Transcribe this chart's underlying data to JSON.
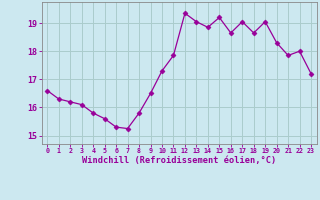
{
  "x": [
    0,
    1,
    2,
    3,
    4,
    5,
    6,
    7,
    8,
    9,
    10,
    11,
    12,
    13,
    14,
    15,
    16,
    17,
    18,
    19,
    20,
    21,
    22,
    23
  ],
  "y": [
    16.6,
    16.3,
    16.2,
    16.1,
    15.8,
    15.6,
    15.3,
    15.25,
    15.8,
    16.5,
    17.3,
    17.85,
    19.35,
    19.05,
    18.85,
    19.2,
    18.65,
    19.05,
    18.65,
    19.05,
    18.3,
    17.85,
    18.0,
    17.2
  ],
  "line_color": "#990099",
  "marker": "D",
  "marker_size": 2.5,
  "bg_color": "#cce8f0",
  "grid_color": "#aacccc",
  "xlabel": "Windchill (Refroidissement éolien,°C)",
  "xlabel_color": "#990099",
  "tick_color": "#990099",
  "yticks": [
    15,
    16,
    17,
    18,
    19
  ],
  "xticks": [
    0,
    1,
    2,
    3,
    4,
    5,
    6,
    7,
    8,
    9,
    10,
    11,
    12,
    13,
    14,
    15,
    16,
    17,
    18,
    19,
    20,
    21,
    22,
    23
  ],
  "ylim": [
    14.7,
    19.75
  ],
  "xlim": [
    -0.5,
    23.5
  ]
}
